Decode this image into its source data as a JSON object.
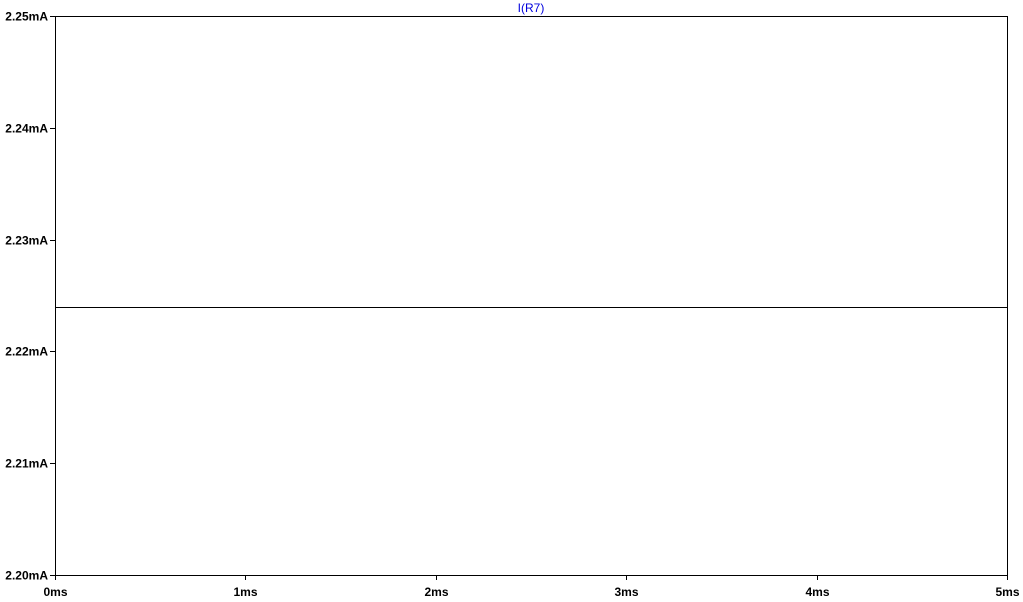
{
  "chart_data": {
    "type": "line",
    "legend_position": "top-center",
    "grid": false,
    "x_unit": "ms",
    "y_unit": "mA",
    "xlim": [
      0,
      5
    ],
    "ylim": [
      2.2,
      2.25
    ],
    "x_ticks": [
      0,
      1,
      2,
      3,
      4,
      5
    ],
    "y_ticks": [
      2.2,
      2.21,
      2.22,
      2.23,
      2.24,
      2.25
    ],
    "x_tick_labels": [
      "0ms",
      "1ms",
      "2ms",
      "3ms",
      "4ms",
      "5ms"
    ],
    "y_tick_labels": [
      "2.20mA",
      "2.21mA",
      "2.22mA",
      "2.23mA",
      "2.24mA",
      "2.25mA"
    ],
    "series": [
      {
        "name": "I(R7)",
        "color": "#000000",
        "label_color": "#0000dd",
        "x": [
          0,
          5
        ],
        "y": [
          2.224,
          2.224
        ]
      }
    ]
  }
}
